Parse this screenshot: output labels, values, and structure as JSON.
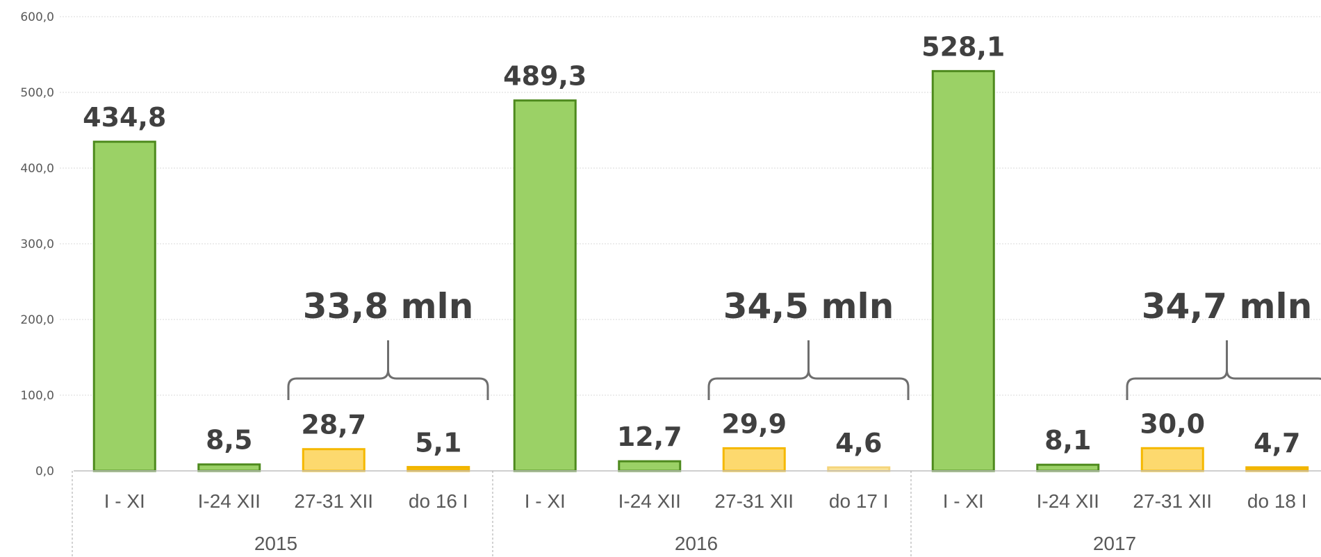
{
  "chart_data": {
    "type": "bar",
    "yticks": [
      "600,0",
      "500,0",
      "400,0",
      "300,0",
      "200,0",
      "100,0",
      "0,0"
    ],
    "ylim": [
      0,
      600
    ],
    "grid": true,
    "groups": [
      {
        "label": "2015",
        "bars": [
          {
            "category": "I - XI",
            "value": 434.8,
            "label": "434,8",
            "kind": "green"
          },
          {
            "category": "I-24 XII",
            "value": 8.5,
            "label": "8,5",
            "kind": "green"
          },
          {
            "category": "27-31 XII",
            "value": 28.7,
            "label": "28,7",
            "kind": "yellow-light"
          },
          {
            "category": "do 16 I",
            "value": 5.1,
            "label": "5,1",
            "kind": "yellow"
          }
        ],
        "brace_label": "33,8 mln"
      },
      {
        "label": "2016",
        "bars": [
          {
            "category": "I - XI",
            "value": 489.3,
            "label": "489,3",
            "kind": "green"
          },
          {
            "category": "I-24 XII",
            "value": 12.7,
            "label": "12,7",
            "kind": "green"
          },
          {
            "category": "27-31 XII",
            "value": 29.9,
            "label": "29,9",
            "kind": "yellow-light"
          },
          {
            "category": "do 17 I",
            "value": 4.6,
            "label": "4,6",
            "kind": "yellow-pale"
          }
        ],
        "brace_label": "34,5 mln"
      },
      {
        "label": "2017",
        "bars": [
          {
            "category": "I - XI",
            "value": 528.1,
            "label": "528,1",
            "kind": "green"
          },
          {
            "category": "I-24 XII",
            "value": 8.1,
            "label": "8,1",
            "kind": "green"
          },
          {
            "category": "27-31 XII",
            "value": 30.0,
            "label": "30,0",
            "kind": "yellow-light"
          },
          {
            "category": "do 18 I",
            "value": 4.7,
            "label": "4,7",
            "kind": "yellow"
          }
        ],
        "brace_label": "34,7 mln"
      }
    ]
  },
  "colors": {
    "green_fill": "#9BD166",
    "green_stroke": "#4E8A1E",
    "yellow_light_fill": "#FDD96E",
    "yellow_light_stroke": "#F5B800",
    "yellow_fill": "#F5B800",
    "yellow_stroke": "#F0B400",
    "yellow_pale_fill": "#FBE7A2",
    "yellow_pale_stroke": "#F4D47A",
    "grid": "#D9D9D9",
    "brace": "#6E6E6E"
  }
}
